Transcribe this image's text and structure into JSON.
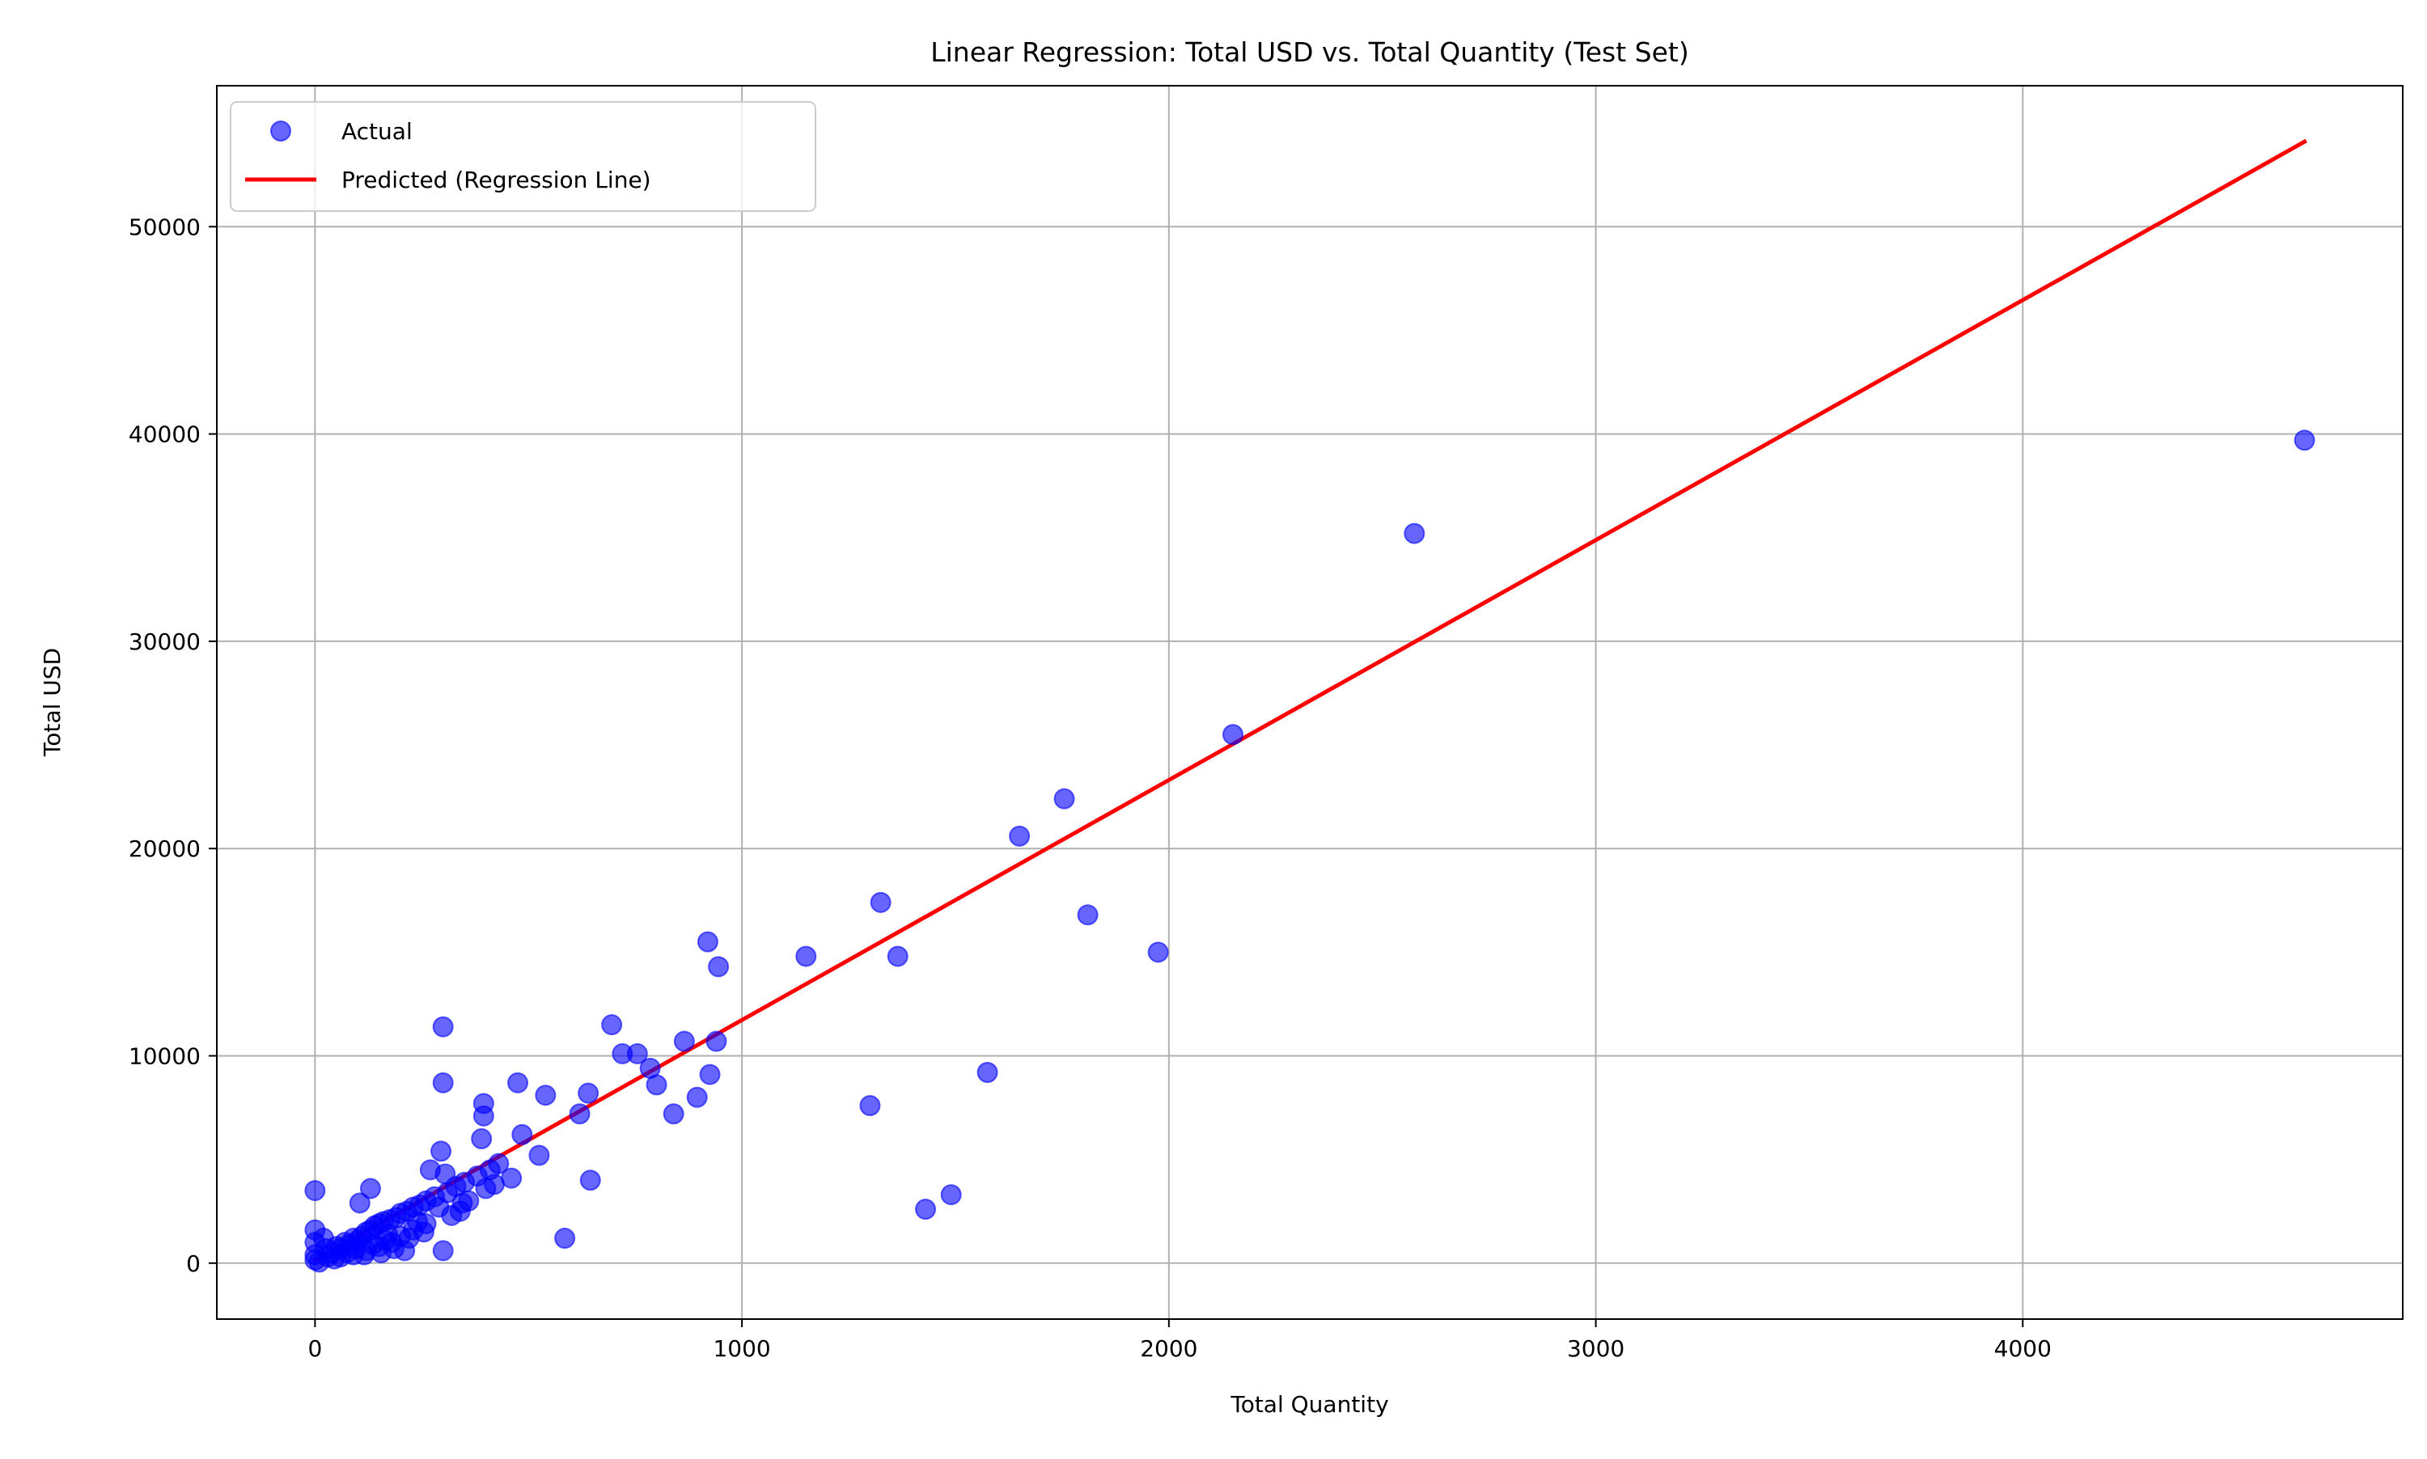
{
  "chart_data": {
    "type": "scatter",
    "title": "Linear Regression: Total USD vs. Total Quantity (Test Set)",
    "xlabel": "Total Quantity",
    "ylabel": "Total USD",
    "xlim": [
      -230,
      4890
    ],
    "ylim": [
      -2700,
      56800
    ],
    "xticks": [
      0,
      1000,
      2000,
      3000,
      4000
    ],
    "yticks": [
      0,
      10000,
      20000,
      30000,
      40000,
      50000
    ],
    "xtick_labels": [
      "0",
      "1000",
      "2000",
      "3000",
      "4000"
    ],
    "ytick_labels": [
      "0",
      "10000",
      "20000",
      "30000",
      "40000",
      "50000"
    ],
    "grid": true,
    "legend_position": "top-left",
    "colors": {
      "actual": "#0000ff",
      "predicted": "#ff0000",
      "grid": "#b0b0b0"
    },
    "series": [
      {
        "name": "Actual",
        "kind": "scatter",
        "points": [
          [
            4660,
            39700
          ],
          [
            2575,
            35200
          ],
          [
            2150,
            25500
          ],
          [
            1755,
            22400
          ],
          [
            1650,
            20600
          ],
          [
            1810,
            16800
          ],
          [
            1975,
            15000
          ],
          [
            1325,
            17400
          ],
          [
            1365,
            14800
          ],
          [
            1150,
            14800
          ],
          [
            920,
            15500
          ],
          [
            945,
            14300
          ],
          [
            1575,
            9200
          ],
          [
            1300,
            7600
          ],
          [
            1490,
            3300
          ],
          [
            1430,
            2600
          ],
          [
            300,
            11400
          ],
          [
            695,
            11500
          ],
          [
            720,
            10100
          ],
          [
            755,
            10100
          ],
          [
            785,
            9400
          ],
          [
            865,
            10700
          ],
          [
            940,
            10700
          ],
          [
            925,
            9100
          ],
          [
            895,
            8000
          ],
          [
            840,
            7200
          ],
          [
            800,
            8600
          ],
          [
            640,
            8200
          ],
          [
            540,
            8100
          ],
          [
            475,
            8700
          ],
          [
            300,
            8700
          ],
          [
            395,
            7700
          ],
          [
            395,
            7100
          ],
          [
            620,
            7200
          ],
          [
            485,
            6200
          ],
          [
            390,
            6000
          ],
          [
            525,
            5200
          ],
          [
            645,
            4000
          ],
          [
            585,
            1200
          ],
          [
            295,
            5400
          ],
          [
            270,
            4500
          ],
          [
            345,
            2900
          ],
          [
            460,
            4100
          ],
          [
            300,
            600
          ],
          [
            0,
            3500
          ],
          [
            130,
            3600
          ],
          [
            105,
            2900
          ],
          [
            210,
            600
          ],
          [
            165,
            1100
          ],
          [
            0,
            1600
          ],
          [
            0,
            1000
          ],
          [
            0,
            400
          ],
          [
            0,
            150
          ],
          [
            10,
            50
          ],
          [
            30,
            300
          ],
          [
            40,
            500
          ],
          [
            50,
            800
          ],
          [
            60,
            700
          ],
          [
            70,
            1000
          ],
          [
            80,
            900
          ],
          [
            90,
            1200
          ],
          [
            100,
            1100
          ],
          [
            110,
            1300
          ],
          [
            120,
            1500
          ],
          [
            130,
            1600
          ],
          [
            140,
            1800
          ],
          [
            150,
            1900
          ],
          [
            160,
            2000
          ],
          [
            175,
            2100
          ],
          [
            190,
            2200
          ],
          [
            200,
            2400
          ],
          [
            215,
            2500
          ],
          [
            230,
            2700
          ],
          [
            245,
            2800
          ],
          [
            260,
            3000
          ],
          [
            280,
            3200
          ],
          [
            310,
            3400
          ],
          [
            330,
            3700
          ],
          [
            350,
            3900
          ],
          [
            380,
            4200
          ],
          [
            410,
            4500
          ],
          [
            430,
            4800
          ],
          [
            60,
            300
          ],
          [
            90,
            400
          ],
          [
            120,
            600
          ],
          [
            150,
            800
          ],
          [
            180,
            1000
          ],
          [
            200,
            1300
          ],
          [
            230,
            1600
          ],
          [
            260,
            1900
          ],
          [
            320,
            2300
          ],
          [
            340,
            2500
          ],
          [
            360,
            3000
          ],
          [
            400,
            3600
          ],
          [
            420,
            3800
          ],
          [
            25,
            700
          ],
          [
            45,
            200
          ],
          [
            75,
            500
          ],
          [
            95,
            700
          ],
          [
            115,
            400
          ],
          [
            135,
            900
          ],
          [
            155,
            500
          ],
          [
            170,
            1400
          ],
          [
            185,
            700
          ],
          [
            220,
            1200
          ],
          [
            240,
            2000
          ],
          [
            255,
            1500
          ],
          [
            290,
            2700
          ],
          [
            305,
            4300
          ],
          [
            20,
            1200
          ]
        ]
      },
      {
        "name": "Predicted (Regression Line)",
        "kind": "line",
        "x": [
          0,
          4660
        ],
        "y": [
          150,
          54100
        ]
      }
    ]
  }
}
